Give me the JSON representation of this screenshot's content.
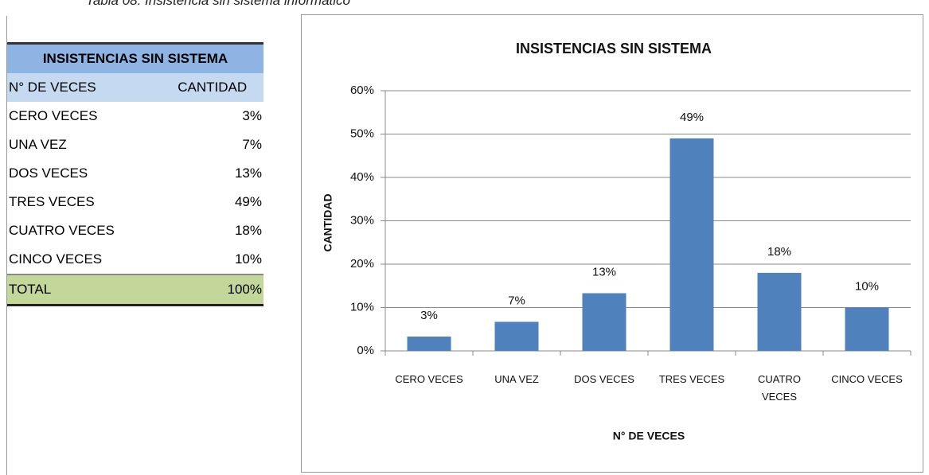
{
  "caption": "Tabla 08: Insistencia sin sistema informático",
  "table": {
    "title": "INSISTENCIAS SIN SISTEMA",
    "columns": [
      "N° DE VECES",
      "CANTIDAD"
    ],
    "rows": [
      [
        "CERO VECES",
        "3%"
      ],
      [
        "UNA VEZ",
        "7%"
      ],
      [
        "DOS VECES",
        "13%"
      ],
      [
        "TRES VECES",
        "49%"
      ],
      [
        "CUATRO VECES",
        "18%"
      ],
      [
        "CINCO VECES",
        "10%"
      ]
    ],
    "total": [
      "TOTAL",
      "100%"
    ]
  },
  "chart_data": {
    "type": "bar",
    "title": "INSISTENCIAS SIN SISTEMA",
    "x_label": "N° DE VECES",
    "y_label": "CANTIDAD",
    "categories": [
      "CERO VECES",
      "UNA VEZ",
      "DOS VECES",
      "TRES VECES",
      "CUATRO VECES",
      "CINCO VECES"
    ],
    "values": [
      3.3,
      6.7,
      13.3,
      49,
      18,
      10
    ],
    "value_labels": [
      "3%",
      "7%",
      "13%",
      "49%",
      "18%",
      "10%"
    ],
    "color": "#4f81bd",
    "ylim": [
      0,
      60
    ],
    "yticks": [
      {
        "value": 0,
        "label": "0%"
      },
      {
        "value": 10,
        "label": "10%"
      },
      {
        "value": 20,
        "label": "20%"
      },
      {
        "value": 30,
        "label": "30%"
      },
      {
        "value": 40,
        "label": "40%"
      },
      {
        "value": 50,
        "label": "50%"
      },
      {
        "value": 60,
        "label": "60%"
      }
    ],
    "grid": true
  }
}
